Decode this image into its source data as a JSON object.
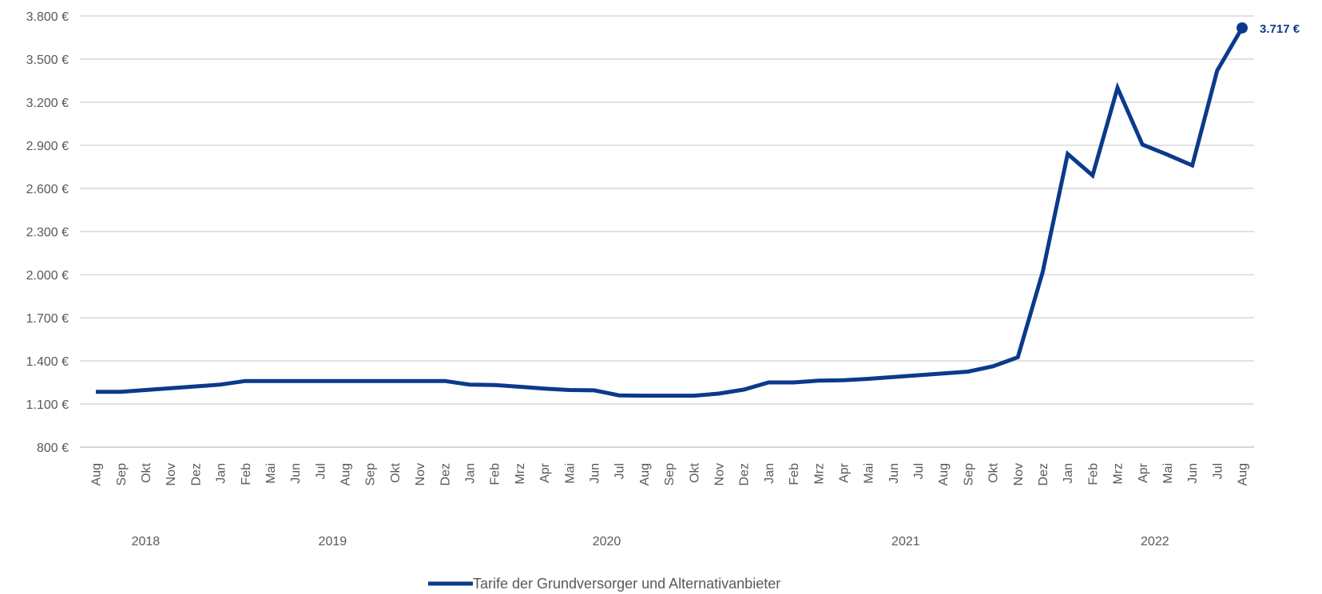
{
  "colors": {
    "series": "#0b3a8c",
    "grid": "#d0d0d0",
    "axis": "#bfbfbf",
    "text": "#595959"
  },
  "chart_data": {
    "type": "line",
    "title": "",
    "xlabel": "",
    "ylabel": "",
    "ylim": [
      800,
      3800
    ],
    "yticks": [
      800,
      1100,
      1400,
      1700,
      2000,
      2300,
      2600,
      2900,
      3200,
      3500,
      3800
    ],
    "ytick_labels": [
      "800 €",
      "1.100 €",
      "1.400 €",
      "1.700 €",
      "2.000 €",
      "2.300 €",
      "2.600 €",
      "2.900 €",
      "3.200 €",
      "3.500 €",
      "3.800 €"
    ],
    "grid": true,
    "legend_position": "bottom",
    "x": [
      "Aug",
      "Sep",
      "Okt",
      "Nov",
      "Dez",
      "Jan",
      "Feb",
      "Mai",
      "Jun",
      "Jul",
      "Aug",
      "Sep",
      "Okt",
      "Nov",
      "Dez",
      "Jan",
      "Feb",
      "Mrz",
      "Apr",
      "Mai",
      "Jun",
      "Jul",
      "Aug",
      "Sep",
      "Okt",
      "Nov",
      "Dez",
      "Jan",
      "Feb",
      "Mrz",
      "Apr",
      "Mai",
      "Jun",
      "Jul",
      "Aug",
      "Sep",
      "Okt",
      "Nov",
      "Dez",
      "Jan",
      "Feb",
      "Mrz",
      "Apr",
      "Mai",
      "Jun",
      "Jul",
      "Aug"
    ],
    "year_groups": [
      {
        "label": "2018",
        "start": 0,
        "end": 4
      },
      {
        "label": "2019",
        "start": 5,
        "end": 14
      },
      {
        "label": "2020",
        "start": 15,
        "end": 26
      },
      {
        "label": "2021",
        "start": 27,
        "end": 38
      },
      {
        "label": "2022",
        "start": 39,
        "end": 46
      }
    ],
    "series": [
      {
        "name": "Tarife der Grundversorger und Alternativanbieter",
        "values": [
          1185,
          1185,
          1197,
          1210,
          1222,
          1235,
          1260,
          1260,
          1260,
          1260,
          1260,
          1260,
          1260,
          1260,
          1260,
          1235,
          1232,
          1220,
          1207,
          1197,
          1195,
          1160,
          1158,
          1158,
          1158,
          1172,
          1200,
          1250,
          1250,
          1262,
          1265,
          1275,
          1288,
          1300,
          1312,
          1325,
          1362,
          1425,
          2020,
          2840,
          2690,
          3300,
          2905,
          2835,
          2760,
          3420,
          3717
        ]
      }
    ],
    "annotations": [
      {
        "index": 46,
        "value": 3717,
        "text": "3.717 €"
      }
    ]
  }
}
